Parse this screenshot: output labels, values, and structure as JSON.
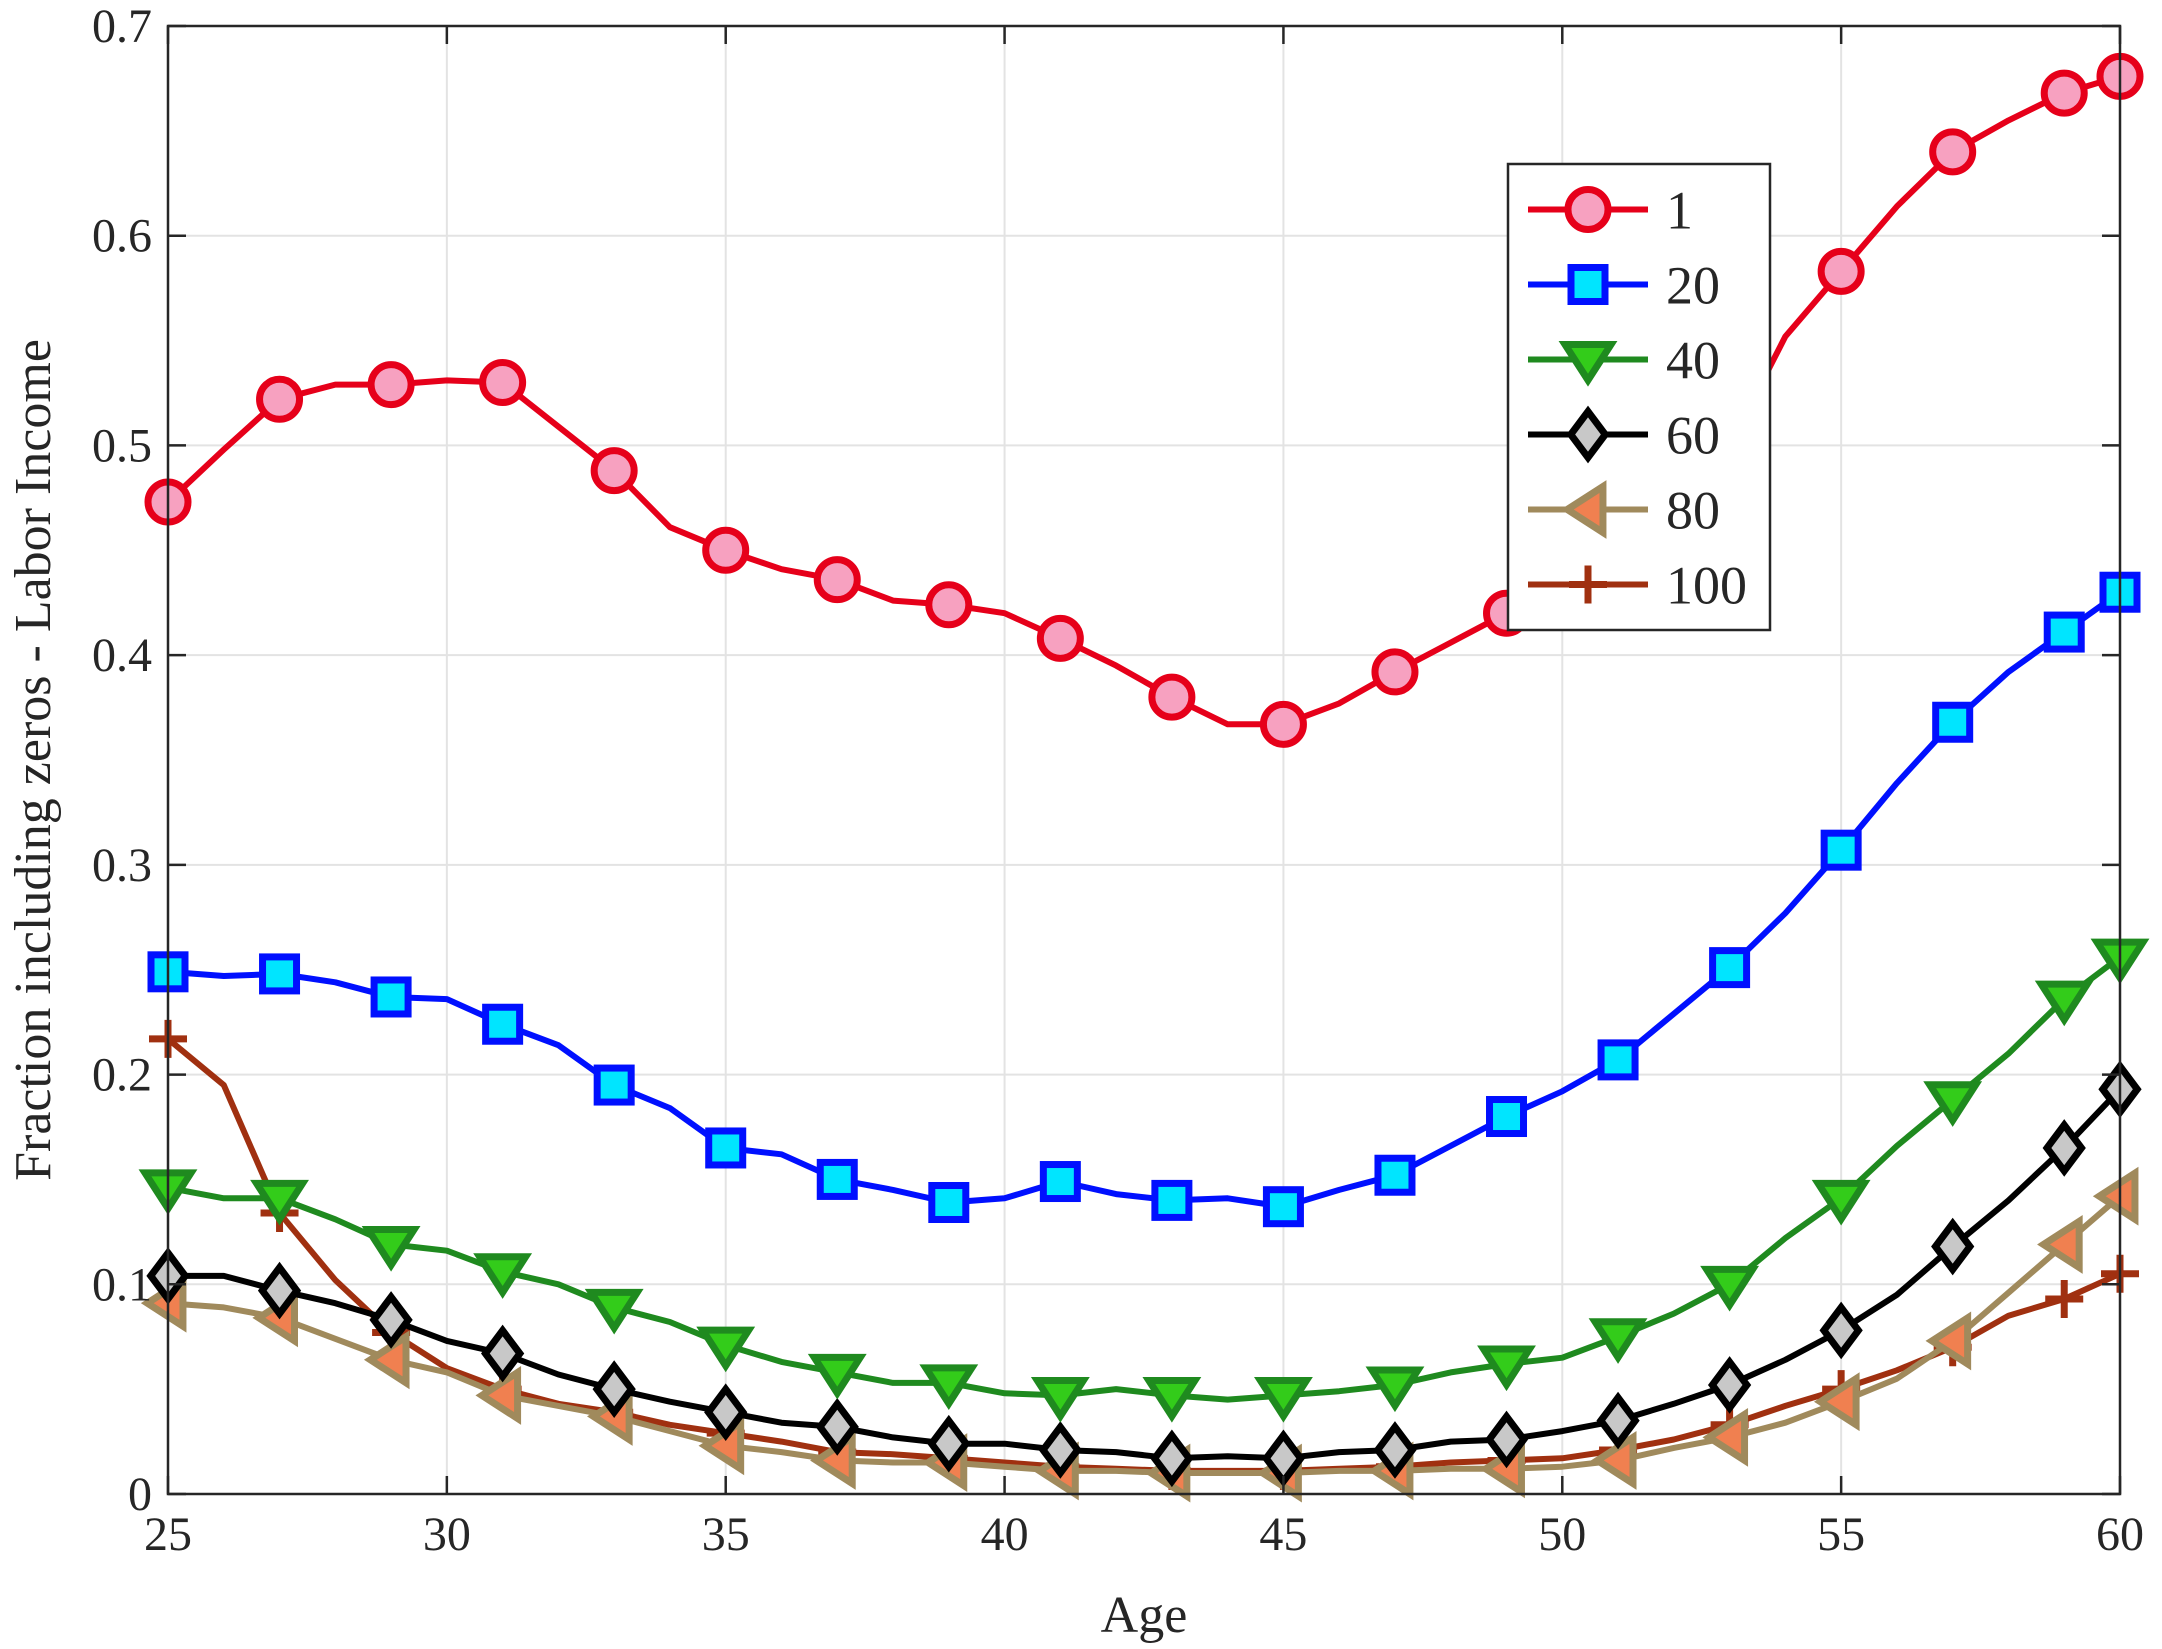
{
  "chart_data": {
    "type": "line",
    "title": "",
    "xlabel": "Age",
    "ylabel": "Fraction including zeros - Labor Income",
    "xlim": [
      25,
      60
    ],
    "ylim": [
      0,
      0.7
    ],
    "x_ticks": [
      25,
      30,
      35,
      40,
      45,
      50,
      55,
      60
    ],
    "x_tick_labels": [
      "25",
      "30",
      "35",
      "40",
      "45",
      "50",
      "55",
      "60"
    ],
    "y_ticks": [
      0,
      0.1,
      0.2,
      0.3,
      0.4,
      0.5,
      0.6,
      0.7
    ],
    "y_tick_labels": [
      "0",
      "0.1",
      "0.2",
      "0.3",
      "0.4",
      "0.5",
      "0.6",
      "0.7"
    ],
    "grid": true,
    "legend_position": "top-right",
    "x": [
      25,
      26,
      27,
      28,
      29,
      30,
      31,
      32,
      33,
      34,
      35,
      36,
      37,
      38,
      39,
      40,
      41,
      42,
      43,
      44,
      45,
      46,
      47,
      48,
      49,
      50,
      51,
      52,
      53,
      54,
      55,
      56,
      57,
      58,
      59,
      60
    ],
    "series": [
      {
        "name": "1",
        "color": "#e6001a",
        "marker": "circle",
        "marker_fill": "#f7a1c0",
        "values": [
          0.473,
          0.498,
          0.522,
          0.529,
          0.529,
          0.531,
          0.53,
          0.509,
          0.488,
          0.461,
          0.45,
          0.441,
          0.436,
          0.426,
          0.424,
          0.42,
          0.408,
          0.395,
          0.38,
          0.367,
          0.367,
          0.377,
          0.392,
          0.406,
          0.42,
          0.432,
          0.446,
          0.46,
          0.5,
          0.552,
          0.583,
          0.614,
          0.64,
          0.655,
          0.668,
          0.676
        ]
      },
      {
        "name": "20",
        "color": "#0010ff",
        "marker": "square",
        "marker_fill": "#00e5ff",
        "values": [
          0.249,
          0.247,
          0.248,
          0.244,
          0.237,
          0.236,
          0.224,
          0.214,
          0.195,
          0.184,
          0.165,
          0.162,
          0.15,
          0.145,
          0.139,
          0.141,
          0.149,
          0.143,
          0.14,
          0.141,
          0.137,
          0.145,
          0.152,
          0.166,
          0.18,
          0.192,
          0.207,
          0.229,
          0.251,
          0.277,
          0.307,
          0.339,
          0.368,
          0.392,
          0.411,
          0.43
        ]
      },
      {
        "name": "40",
        "color": "#1f8a1f",
        "marker": "triangle-down",
        "marker_fill": "#33cc1a",
        "values": [
          0.146,
          0.141,
          0.141,
          0.131,
          0.119,
          0.116,
          0.106,
          0.1,
          0.089,
          0.082,
          0.071,
          0.063,
          0.058,
          0.053,
          0.053,
          0.048,
          0.047,
          0.05,
          0.047,
          0.045,
          0.047,
          0.049,
          0.052,
          0.058,
          0.062,
          0.065,
          0.075,
          0.086,
          0.1,
          0.122,
          0.141,
          0.166,
          0.188,
          0.21,
          0.236,
          0.256
        ]
      },
      {
        "name": "60",
        "color": "#000000",
        "marker": "diamond",
        "marker_fill": "#c8c8c8",
        "values": [
          0.104,
          0.104,
          0.097,
          0.091,
          0.083,
          0.073,
          0.067,
          0.057,
          0.05,
          0.044,
          0.039,
          0.034,
          0.032,
          0.027,
          0.024,
          0.024,
          0.021,
          0.02,
          0.017,
          0.018,
          0.017,
          0.02,
          0.021,
          0.025,
          0.026,
          0.03,
          0.035,
          0.043,
          0.052,
          0.064,
          0.078,
          0.095,
          0.118,
          0.14,
          0.165,
          0.193
        ]
      },
      {
        "name": "80",
        "color": "#a08a5c",
        "marker": "triangle-left",
        "marker_fill": "#f08050",
        "values": [
          0.091,
          0.089,
          0.084,
          0.074,
          0.064,
          0.058,
          0.047,
          0.042,
          0.037,
          0.03,
          0.023,
          0.02,
          0.016,
          0.015,
          0.015,
          0.013,
          0.011,
          0.011,
          0.01,
          0.01,
          0.01,
          0.011,
          0.011,
          0.012,
          0.012,
          0.013,
          0.016,
          0.022,
          0.027,
          0.034,
          0.044,
          0.055,
          0.073,
          0.096,
          0.119,
          0.142
        ]
      },
      {
        "name": "100",
        "color": "#a03010",
        "marker": "plus",
        "marker_fill": "#a03010",
        "values": [
          0.217,
          0.195,
          0.134,
          0.102,
          0.077,
          0.06,
          0.05,
          0.043,
          0.039,
          0.033,
          0.029,
          0.025,
          0.02,
          0.019,
          0.017,
          0.015,
          0.013,
          0.012,
          0.011,
          0.011,
          0.011,
          0.012,
          0.013,
          0.015,
          0.016,
          0.017,
          0.021,
          0.026,
          0.033,
          0.042,
          0.05,
          0.059,
          0.07,
          0.085,
          0.093,
          0.105
        ]
      }
    ]
  }
}
